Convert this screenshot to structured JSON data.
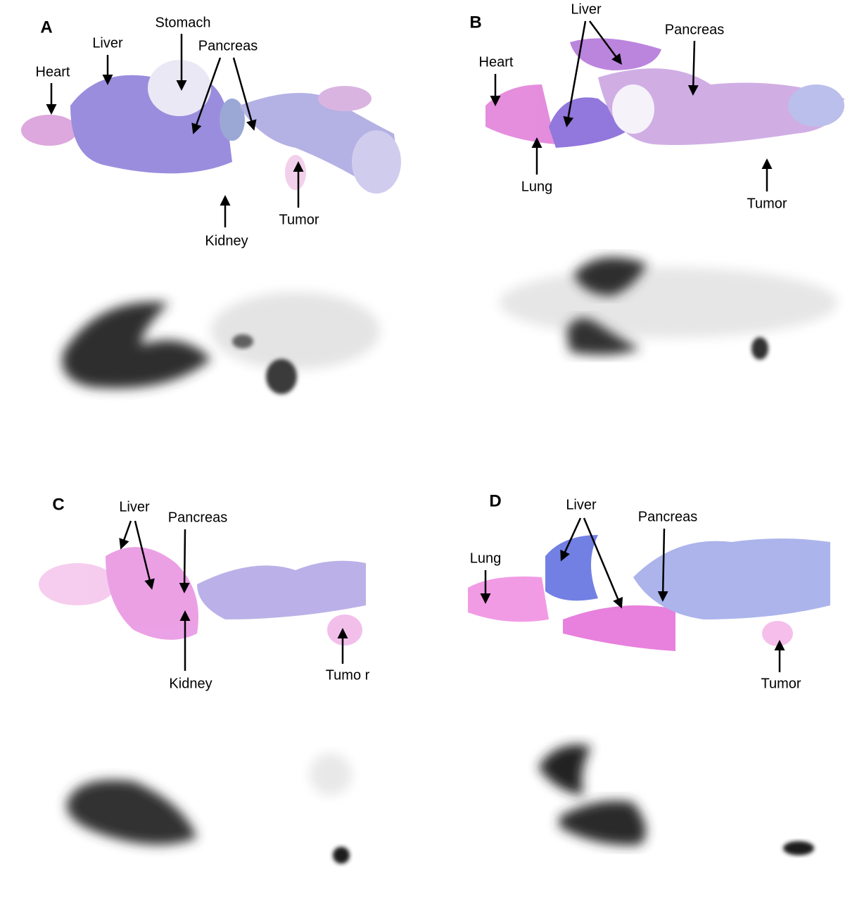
{
  "panels": [
    {
      "letter": "A",
      "labels": [
        "Heart",
        "Liver",
        "Stomach",
        "Pancreas",
        "Kidney",
        "Tumor"
      ]
    },
    {
      "letter": "B",
      "labels": [
        "Heart",
        "Liver",
        "Pancreas",
        "Lung",
        "Tumor"
      ]
    },
    {
      "letter": "C",
      "labels": [
        "Liver",
        "Pancreas",
        "Kidney",
        "Tumo r"
      ]
    },
    {
      "letter": "D",
      "labels": [
        "Lung",
        "Liver",
        "Pancreas",
        "Tumor"
      ]
    }
  ]
}
